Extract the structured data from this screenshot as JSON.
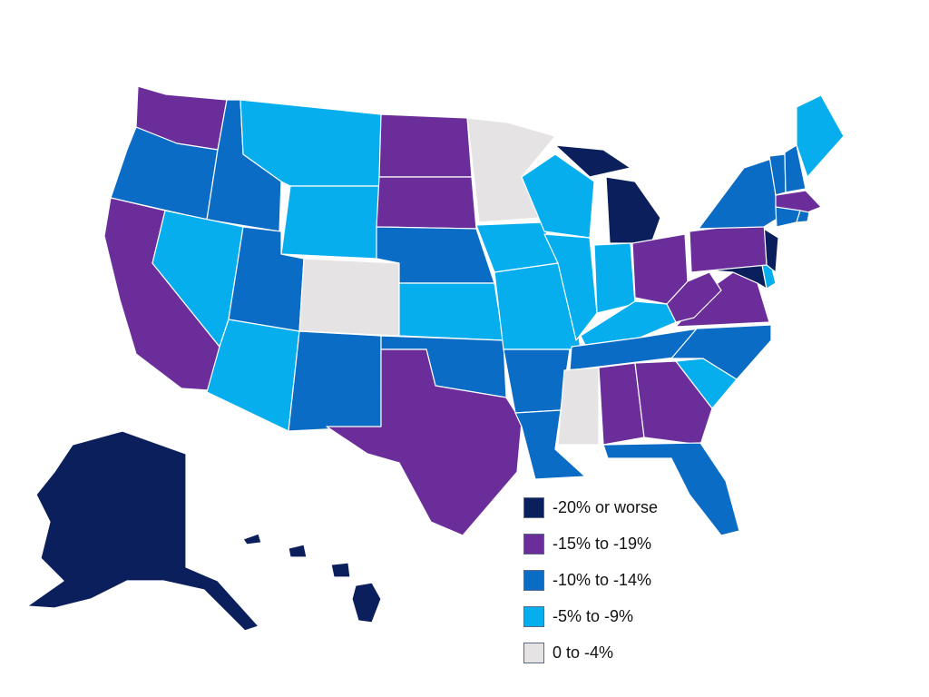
{
  "colors": {
    "worst": "#0b1f5c",
    "bad": "#6b2d9a",
    "mid": "#0a6cc4",
    "mild": "#06aeee",
    "low": "#e5e3e4"
  },
  "states": [
    {
      "name": "WA",
      "cat": "bad"
    },
    {
      "name": "OR",
      "cat": "mid"
    },
    {
      "name": "CA",
      "cat": "bad"
    },
    {
      "name": "ID",
      "cat": "mid"
    },
    {
      "name": "NV",
      "cat": "mild"
    },
    {
      "name": "MT",
      "cat": "mild"
    },
    {
      "name": "WY",
      "cat": "mild"
    },
    {
      "name": "UT",
      "cat": "mid"
    },
    {
      "name": "AZ",
      "cat": "mild"
    },
    {
      "name": "CO",
      "cat": "low"
    },
    {
      "name": "NM",
      "cat": "mid"
    },
    {
      "name": "ND",
      "cat": "bad"
    },
    {
      "name": "SD",
      "cat": "bad"
    },
    {
      "name": "NE",
      "cat": "mid"
    },
    {
      "name": "KS",
      "cat": "mild"
    },
    {
      "name": "OK",
      "cat": "mid"
    },
    {
      "name": "TX",
      "cat": "bad"
    },
    {
      "name": "MN",
      "cat": "low"
    },
    {
      "name": "IA",
      "cat": "mild"
    },
    {
      "name": "MO",
      "cat": "mild"
    },
    {
      "name": "AR",
      "cat": "mid"
    },
    {
      "name": "LA",
      "cat": "mid"
    },
    {
      "name": "WI",
      "cat": "mild"
    },
    {
      "name": "MI",
      "cat": "worst"
    },
    {
      "name": "IL",
      "cat": "mild"
    },
    {
      "name": "IN",
      "cat": "mild"
    },
    {
      "name": "OH",
      "cat": "bad"
    },
    {
      "name": "KY",
      "cat": "mild"
    },
    {
      "name": "TN",
      "cat": "mid"
    },
    {
      "name": "MS",
      "cat": "low"
    },
    {
      "name": "AL",
      "cat": "bad"
    },
    {
      "name": "GA",
      "cat": "bad"
    },
    {
      "name": "FL",
      "cat": "mid"
    },
    {
      "name": "SC",
      "cat": "mild"
    },
    {
      "name": "NC",
      "cat": "mid"
    },
    {
      "name": "VA",
      "cat": "bad"
    },
    {
      "name": "WV",
      "cat": "bad"
    },
    {
      "name": "MD",
      "cat": "worst"
    },
    {
      "name": "DE",
      "cat": "mild"
    },
    {
      "name": "NJ",
      "cat": "worst"
    },
    {
      "name": "PA",
      "cat": "bad"
    },
    {
      "name": "NY",
      "cat": "mid"
    },
    {
      "name": "VT",
      "cat": "mid"
    },
    {
      "name": "NH",
      "cat": "mid"
    },
    {
      "name": "ME",
      "cat": "mild"
    },
    {
      "name": "MA",
      "cat": "bad"
    },
    {
      "name": "CT",
      "cat": "mid"
    },
    {
      "name": "RI",
      "cat": "mid"
    },
    {
      "name": "AK",
      "cat": "worst"
    },
    {
      "name": "HI",
      "cat": "worst"
    }
  ],
  "legend": {
    "items": [
      {
        "label": "-20% or worse",
        "color": "#0b1f5c"
      },
      {
        "label": "-15% to -19%",
        "color": "#6b2d9a"
      },
      {
        "label": "-10% to -14%",
        "color": "#0a6cc4"
      },
      {
        "label": "-5% to -9%",
        "color": "#06aeee"
      },
      {
        "label": "0 to -4%",
        "color": "#e5e3e4"
      }
    ]
  }
}
